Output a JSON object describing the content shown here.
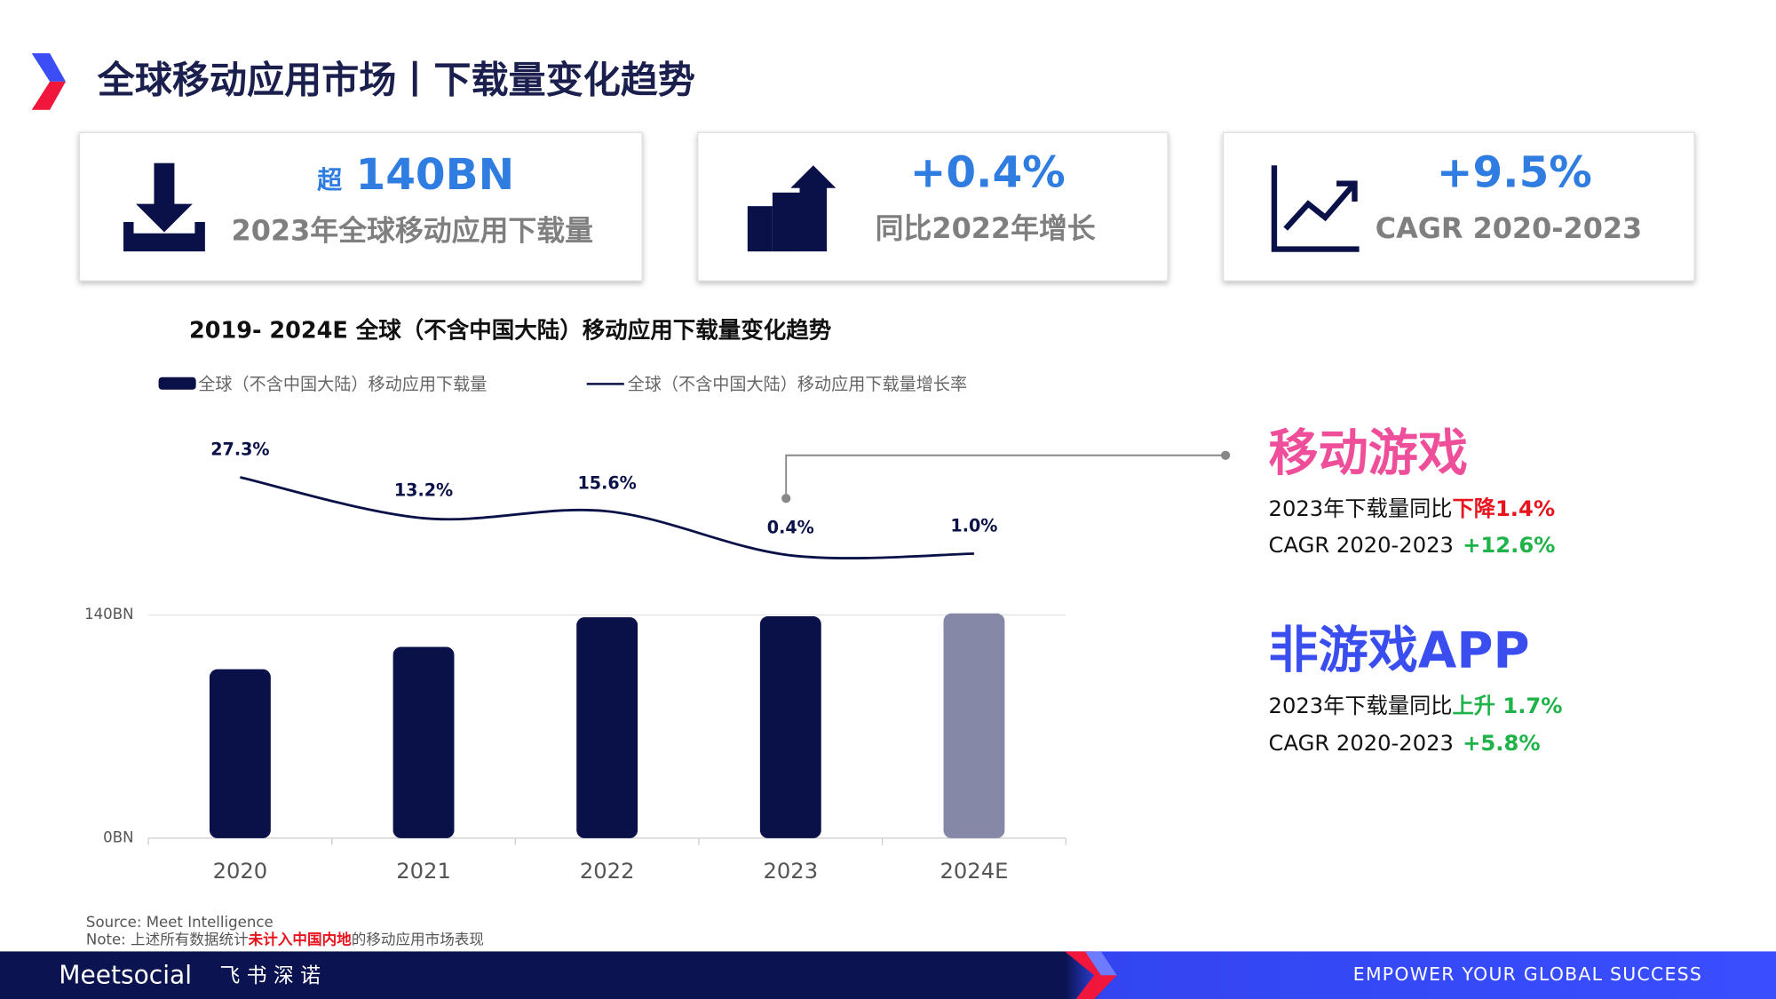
{
  "header": {
    "title": "全球移动应用市场丨下载量变化趋势"
  },
  "kpis": [
    {
      "prefix": "超",
      "value": "140BN",
      "label": "2023年全球移动应用下载量"
    },
    {
      "value": "+0.4%",
      "label": "同比2022年增长"
    },
    {
      "value": "+9.5%",
      "label": "CAGR 2020-2023"
    }
  ],
  "chart_data": {
    "type": "bar",
    "title": "2019- 2024E 全球（不含中国大陆）移动应用下载量变化趋势",
    "categories": [
      "2020",
      "2021",
      "2022",
      "2023",
      "2024E"
    ],
    "series": [
      {
        "name": "全球（不含中国大陆）移动应用下载量",
        "color": "#0a1148",
        "colors": [
          "#0a1148",
          "#0a1148",
          "#0a1148",
          "#0a1148",
          "#8588a6"
        ],
        "values": [
          106,
          120,
          138.6,
          139.2,
          141
        ]
      },
      {
        "name": "全球（不含中国大陆）移动应用下载量增长率",
        "type": "line",
        "axis": "y2",
        "color": "#0a1148",
        "values": [
          27.3,
          13.2,
          15.6,
          0.4,
          1.0
        ],
        "value_labels": [
          "27.3%",
          "13.2%",
          "15.6%",
          "0.4%",
          "1.0%"
        ]
      }
    ],
    "ylim": [
      0,
      140
    ],
    "yticks": [
      {
        "value": 0,
        "label": "0BN"
      },
      {
        "value": 140,
        "label": "140BN"
      }
    ],
    "y2lim": [
      -10,
      45
    ],
    "grid": true
  },
  "segments": [
    {
      "title": "移动游戏",
      "yoy_label": "2023年下载量同比",
      "yoy": "下降1.4%",
      "cagr_label": "CAGR 2020-2023",
      "cagr": "+12.6%"
    },
    {
      "title": "非游戏APP",
      "yoy_label": "2023年下载量同比",
      "yoy": "上升 1.7%",
      "cagr_label": "CAGR 2020-2023",
      "cagr": "+5.8%"
    }
  ],
  "footer": {
    "source": "Source: Meet Intelligence",
    "note_a": "Note: 上述所有数据统计",
    "note_b": "未计入中国内地",
    "note_c": "的移动应用市场表现",
    "brand": "Meetsocial",
    "brand_cn": "飞 书 深 诺",
    "slogan": "EMPOWER YOUR GLOBAL SUCCESS"
  }
}
